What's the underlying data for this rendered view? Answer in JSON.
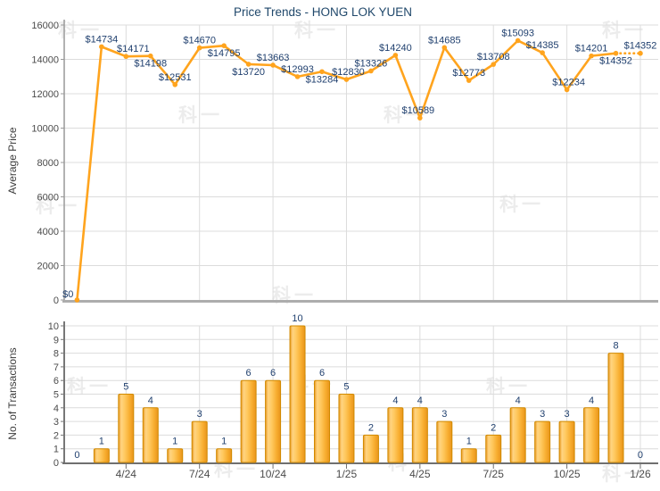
{
  "page": {
    "watermark_text": "科一"
  },
  "colors": {
    "line": "#FFA41E",
    "marker": "#FFA41E",
    "bar_border": "#D18A00",
    "bar_gradient": [
      "#E8971E",
      "#FFD482",
      "#FFC95F",
      "#F7AC2E",
      "#E8941C"
    ],
    "value_label": "#1F3F6E",
    "title": "#20486B",
    "grid": "#DCDCDC",
    "axis_left_top": "#999999",
    "axis_bottom_top": "#ADADAD",
    "axis_left_bottom": "#777777",
    "axis_bottom_bottom": "#6F6F6F",
    "tick_text": "#4b4b4b"
  },
  "chart_data": [
    {
      "id": "price-trend",
      "type": "line",
      "title": "Price Trends - HONG LOK YUEN",
      "ylabel": "Average Price",
      "xlabel": "",
      "ylim": [
        0,
        16000
      ],
      "grid": true,
      "legend_position": "none",
      "yticks": [
        0,
        2000,
        4000,
        6000,
        8000,
        10000,
        12000,
        14000,
        16000
      ],
      "ytick_labels": [
        "0",
        "2000",
        "4000",
        "6000",
        "8000",
        "10000",
        "12000",
        "14000",
        "16000"
      ],
      "values": [
        0,
        14734,
        14171,
        14198,
        12531,
        14670,
        14795,
        13720,
        13663,
        12993,
        13284,
        12830,
        13326,
        14240,
        10589,
        14685,
        12773,
        13708,
        15093,
        14385,
        12234,
        14201,
        14352,
        14352
      ],
      "point_labels": [
        "$0",
        "$14734",
        "$14171",
        "$14198",
        "$12531",
        "$14670",
        "$14795",
        "$13720",
        "$13663",
        "$12993",
        "$13284",
        "$12830",
        "$13326",
        "$14240",
        "$10589",
        "$14685",
        "$12773",
        "$13708",
        "$15093",
        "$14385",
        "$12234",
        "$14201",
        "$14352",
        "$14352"
      ],
      "label_side": [
        "left",
        "above",
        "above",
        "below",
        "above",
        "above",
        "below",
        "below",
        "above",
        "above",
        "below",
        "above",
        "above",
        "above",
        "above",
        "above",
        "above",
        "above",
        "above",
        "above",
        "above",
        "above",
        "below",
        "above"
      ],
      "label_dx": [
        0,
        0,
        8,
        0,
        0,
        0,
        0,
        0,
        0,
        0,
        0,
        2,
        0,
        0,
        -2,
        0,
        0,
        0,
        0,
        0,
        2,
        0,
        0,
        0
      ],
      "last_segment_dotted": true
    },
    {
      "id": "transactions",
      "type": "bar",
      "title": "",
      "ylabel": "No. of Transactions",
      "xlabel": "",
      "ylim": [
        0,
        10
      ],
      "grid": true,
      "legend_position": "none",
      "yticks": [
        0,
        1,
        2,
        3,
        4,
        5,
        6,
        7,
        8,
        9,
        10
      ],
      "ytick_labels": [
        "0",
        "1",
        "2",
        "3",
        "4",
        "5",
        "6",
        "7",
        "8",
        "9",
        "10"
      ],
      "values": [
        0,
        1,
        5,
        4,
        1,
        3,
        1,
        6,
        6,
        10,
        6,
        5,
        2,
        4,
        4,
        3,
        1,
        2,
        4,
        3,
        3,
        4,
        8,
        0
      ],
      "bar_labels": [
        "0",
        "1",
        "5",
        "4",
        "1",
        "3",
        "1",
        "6",
        "6",
        "10",
        "6",
        "5",
        "2",
        "4",
        "4",
        "3",
        "1",
        "2",
        "4",
        "3",
        "3",
        "4",
        "8",
        "0"
      ],
      "xtick_indices": [
        2,
        5,
        8,
        11,
        14,
        17,
        20,
        23
      ],
      "xtick_labels": [
        "4/24",
        "7/24",
        "10/24",
        "1/25",
        "4/25",
        "7/25",
        "10/25",
        "1/26"
      ]
    }
  ]
}
